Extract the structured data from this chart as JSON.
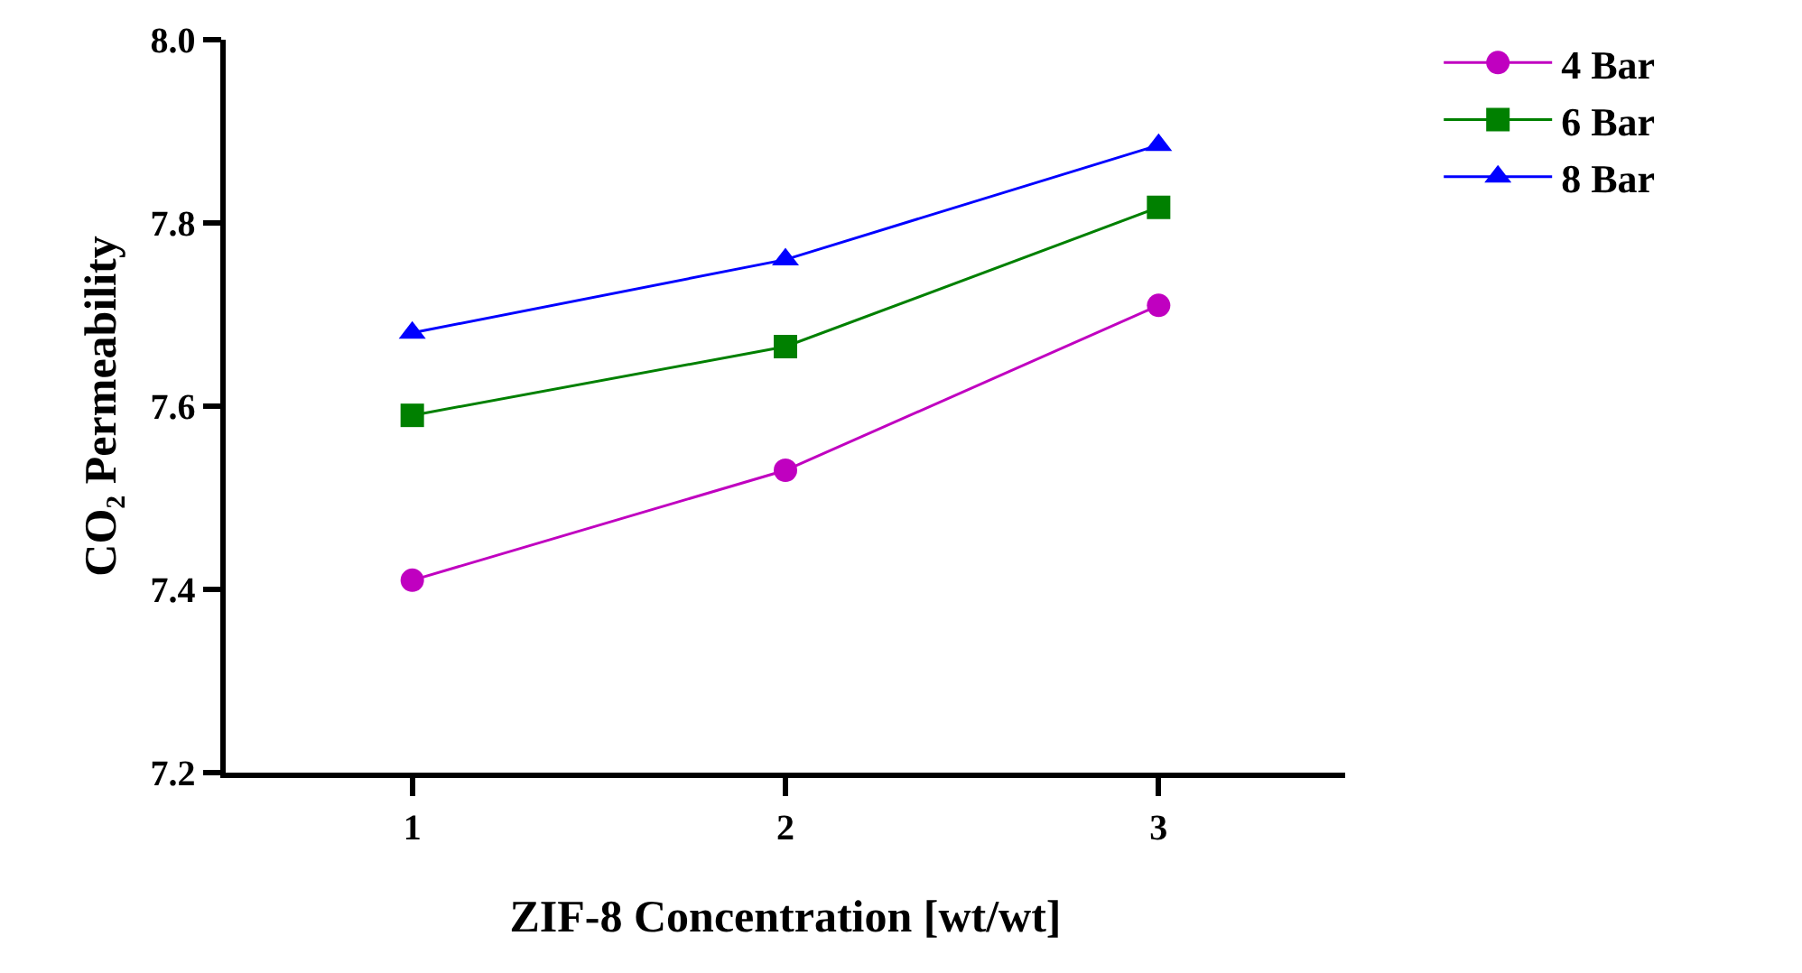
{
  "chart_data": {
    "type": "line",
    "xlabel": "ZIF-8 Concentration [wt/wt]",
    "ylabel": "CO₂ Permeability",
    "x": [
      1,
      2,
      3
    ],
    "xlim": [
      0.5,
      3.5
    ],
    "xticks": [
      1,
      2,
      3
    ],
    "ylim": [
      7.2,
      8.0
    ],
    "yticks": [
      7.2,
      7.4,
      7.6,
      7.8,
      {
        "value": 8,
        "label": "8.0"
      }
    ],
    "grid": false,
    "legend": "right",
    "line_style": "solid",
    "series": [
      {
        "name": "4 Bar",
        "color": "#c000c0",
        "marker": "circle",
        "values": [
          7.41,
          7.53,
          7.71
        ]
      },
      {
        "name": "6 Bar",
        "color": "#008000",
        "marker": "square",
        "values": [
          7.59,
          7.665,
          7.817
        ]
      },
      {
        "name": "8 Bar",
        "color": "#0000ff",
        "marker": "triangle",
        "values": [
          7.68,
          7.76,
          7.885
        ]
      }
    ]
  }
}
